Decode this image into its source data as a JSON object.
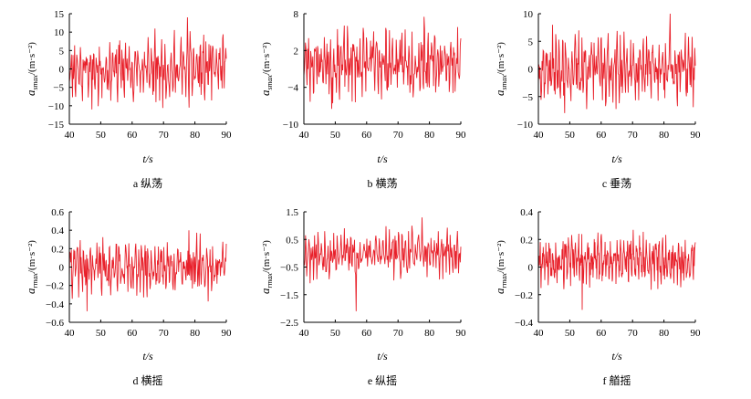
{
  "figure": {
    "line_color": "#e8202a",
    "axis_color": "#000000"
  },
  "chart_data": [
    {
      "type": "line",
      "caption": "a 纵荡",
      "xlabel": "t/s",
      "ylabel": "a_smax/(m·s⁻²)",
      "ylabel_sym": "a",
      "ylabel_sub": "smax",
      "ylabel_unit": "/(m·s⁻²)",
      "xlim": [
        40,
        90
      ],
      "ylim": [
        -15,
        15
      ],
      "xticks": [
        40,
        50,
        60,
        70,
        80,
        90
      ],
      "yticks": [
        15,
        10,
        5,
        0,
        -5,
        -10,
        -15
      ],
      "series": [
        {
          "x_range": [
            40,
            90
          ],
          "n_points": 300,
          "amplitude": 3.6,
          "peak_max": 14,
          "peak_min": -11,
          "seed": 11
        }
      ]
    },
    {
      "type": "line",
      "caption": "b 横荡",
      "xlabel": "t/s",
      "ylabel": "a_smax/(m·s⁻²)",
      "ylabel_sym": "a",
      "ylabel_sub": "smax",
      "ylabel_unit": "/(m·s⁻²)",
      "xlim": [
        40,
        90
      ],
      "ylim": [
        -10,
        8
      ],
      "xticks": [
        40,
        50,
        60,
        70,
        80,
        90
      ],
      "yticks": [
        8,
        2,
        -4,
        -10
      ],
      "series": [
        {
          "x_range": [
            40,
            90
          ],
          "n_points": 300,
          "amplitude": 2.2,
          "peak_max": 7.5,
          "peak_min": -7.5,
          "seed": 23
        }
      ]
    },
    {
      "type": "line",
      "caption": "c 垂荡",
      "xlabel": "t/s",
      "ylabel": "a_smax/(m·s⁻²)",
      "ylabel_sym": "a",
      "ylabel_sub": "smax",
      "ylabel_unit": "/(m·s⁻²)",
      "xlim": [
        40,
        90
      ],
      "ylim": [
        -10,
        10
      ],
      "xticks": [
        40,
        50,
        60,
        70,
        80,
        90
      ],
      "yticks": [
        10,
        5,
        0,
        -5,
        -10
      ],
      "series": [
        {
          "x_range": [
            40,
            90
          ],
          "n_points": 300,
          "amplitude": 2.6,
          "peak_max": 10,
          "peak_min": -8,
          "seed": 37
        }
      ]
    },
    {
      "type": "line",
      "caption": "d 横摇",
      "xlabel": "t/s",
      "ylabel": "a_rmax/(m·s⁻²)",
      "ylabel_sym": "a",
      "ylabel_sub": "rmax",
      "ylabel_unit": "/(m·s⁻²)",
      "xlim": [
        40,
        90
      ],
      "ylim": [
        -0.6,
        0.6
      ],
      "xticks": [
        40,
        50,
        60,
        70,
        80,
        90
      ],
      "yticks": [
        0.6,
        0.4,
        0.2,
        0,
        -0.2,
        -0.4,
        -0.6
      ],
      "series": [
        {
          "x_range": [
            40,
            90
          ],
          "n_points": 320,
          "amplitude": 0.12,
          "peak_max": 0.4,
          "peak_min": -0.48,
          "seed": 41
        }
      ]
    },
    {
      "type": "line",
      "caption": "e 纵摇",
      "xlabel": "t/s",
      "ylabel": "a_rmax/(m·s⁻²)",
      "ylabel_sym": "a",
      "ylabel_sub": "rmax",
      "ylabel_unit": "/(m·s⁻²)",
      "xlim": [
        40,
        90
      ],
      "ylim": [
        -2.5,
        1.5
      ],
      "xticks": [
        40,
        50,
        60,
        70,
        80,
        90
      ],
      "yticks": [
        1.5,
        0.5,
        -0.5,
        -1.5,
        -2.5
      ],
      "series": [
        {
          "x_range": [
            40,
            90
          ],
          "n_points": 280,
          "amplitude": 0.35,
          "peak_max": 1.3,
          "peak_min": -2.1,
          "seed": 53
        }
      ]
    },
    {
      "type": "line",
      "caption": "f 艏摇",
      "xlabel": "t/s",
      "ylabel": "a_rmax/(m·s⁻²)",
      "ylabel_sym": "a",
      "ylabel_sub": "rmax",
      "ylabel_unit": "/(m·s⁻²)",
      "xlim": [
        40,
        90
      ],
      "ylim": [
        -0.4,
        0.4
      ],
      "xticks": [
        40,
        50,
        60,
        70,
        80,
        90
      ],
      "yticks": [
        0.4,
        0.2,
        0,
        -0.2,
        -0.4
      ],
      "series": [
        {
          "x_range": [
            40,
            90
          ],
          "n_points": 420,
          "amplitude": 0.07,
          "offset": 0.05,
          "peak_max": 0.27,
          "peak_min": -0.31,
          "seed": 67
        }
      ]
    }
  ]
}
